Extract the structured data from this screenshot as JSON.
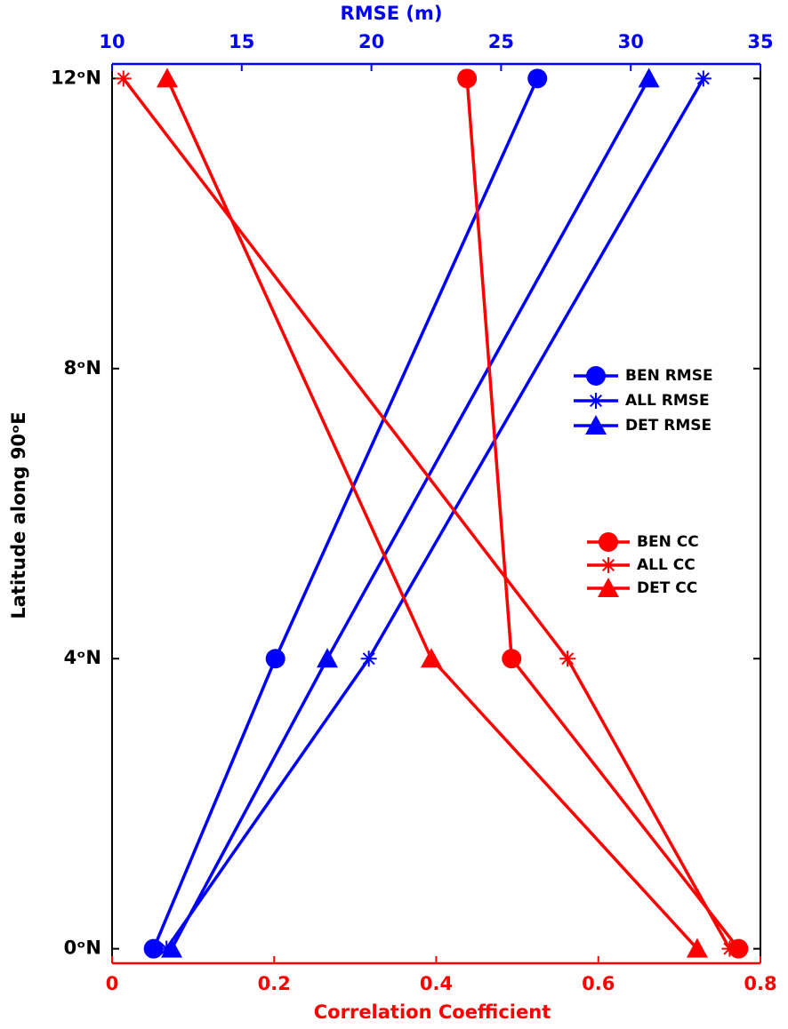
{
  "chart_data": {
    "type": "line",
    "xlabel": "Correlation Coefficient",
    "x2label": "RMSE (m)",
    "ylabel": "Latitude along 90ᵒE",
    "y": [
      0,
      4,
      12
    ],
    "xlim": [
      0,
      0.8
    ],
    "xticks": [
      0,
      0.2,
      0.4,
      0.6,
      0.8
    ],
    "x2lim": [
      10,
      35
    ],
    "x2ticks": [
      10,
      15,
      20,
      25,
      30,
      35
    ],
    "ylim": [
      -0.2,
      12.2
    ],
    "yticks": [
      {
        "value": 0,
        "label": "0ᵒN"
      },
      {
        "value": 4,
        "label": "4ᵒN"
      },
      {
        "value": 8,
        "label": "8ᵒN"
      },
      {
        "value": 12,
        "label": "12ᵒN"
      }
    ],
    "series": [
      {
        "name": "BEN RMSE",
        "color": "#0000ff",
        "marker": "circle",
        "axis": "x2",
        "values": [
          11.6,
          16.3,
          26.4
        ]
      },
      {
        "name": "ALL RMSE",
        "color": "#0000ff",
        "marker": "asterisk",
        "axis": "x2",
        "values": [
          12.1,
          19.9,
          32.8
        ]
      },
      {
        "name": "DET RMSE",
        "color": "#0000ff",
        "marker": "triangle",
        "axis": "x2",
        "values": [
          12.3,
          18.3,
          30.7
        ]
      },
      {
        "name": "BEN CC",
        "color": "#ff0000",
        "marker": "circle",
        "axis": "x",
        "values": [
          0.773,
          0.493,
          0.438
        ]
      },
      {
        "name": "ALL CC",
        "color": "#ff0000",
        "marker": "asterisk",
        "axis": "x",
        "values": [
          0.762,
          0.562,
          0.014
        ]
      },
      {
        "name": "DET CC",
        "color": "#ff0000",
        "marker": "triangle",
        "axis": "x",
        "values": [
          0.722,
          0.394,
          0.068
        ]
      }
    ]
  }
}
